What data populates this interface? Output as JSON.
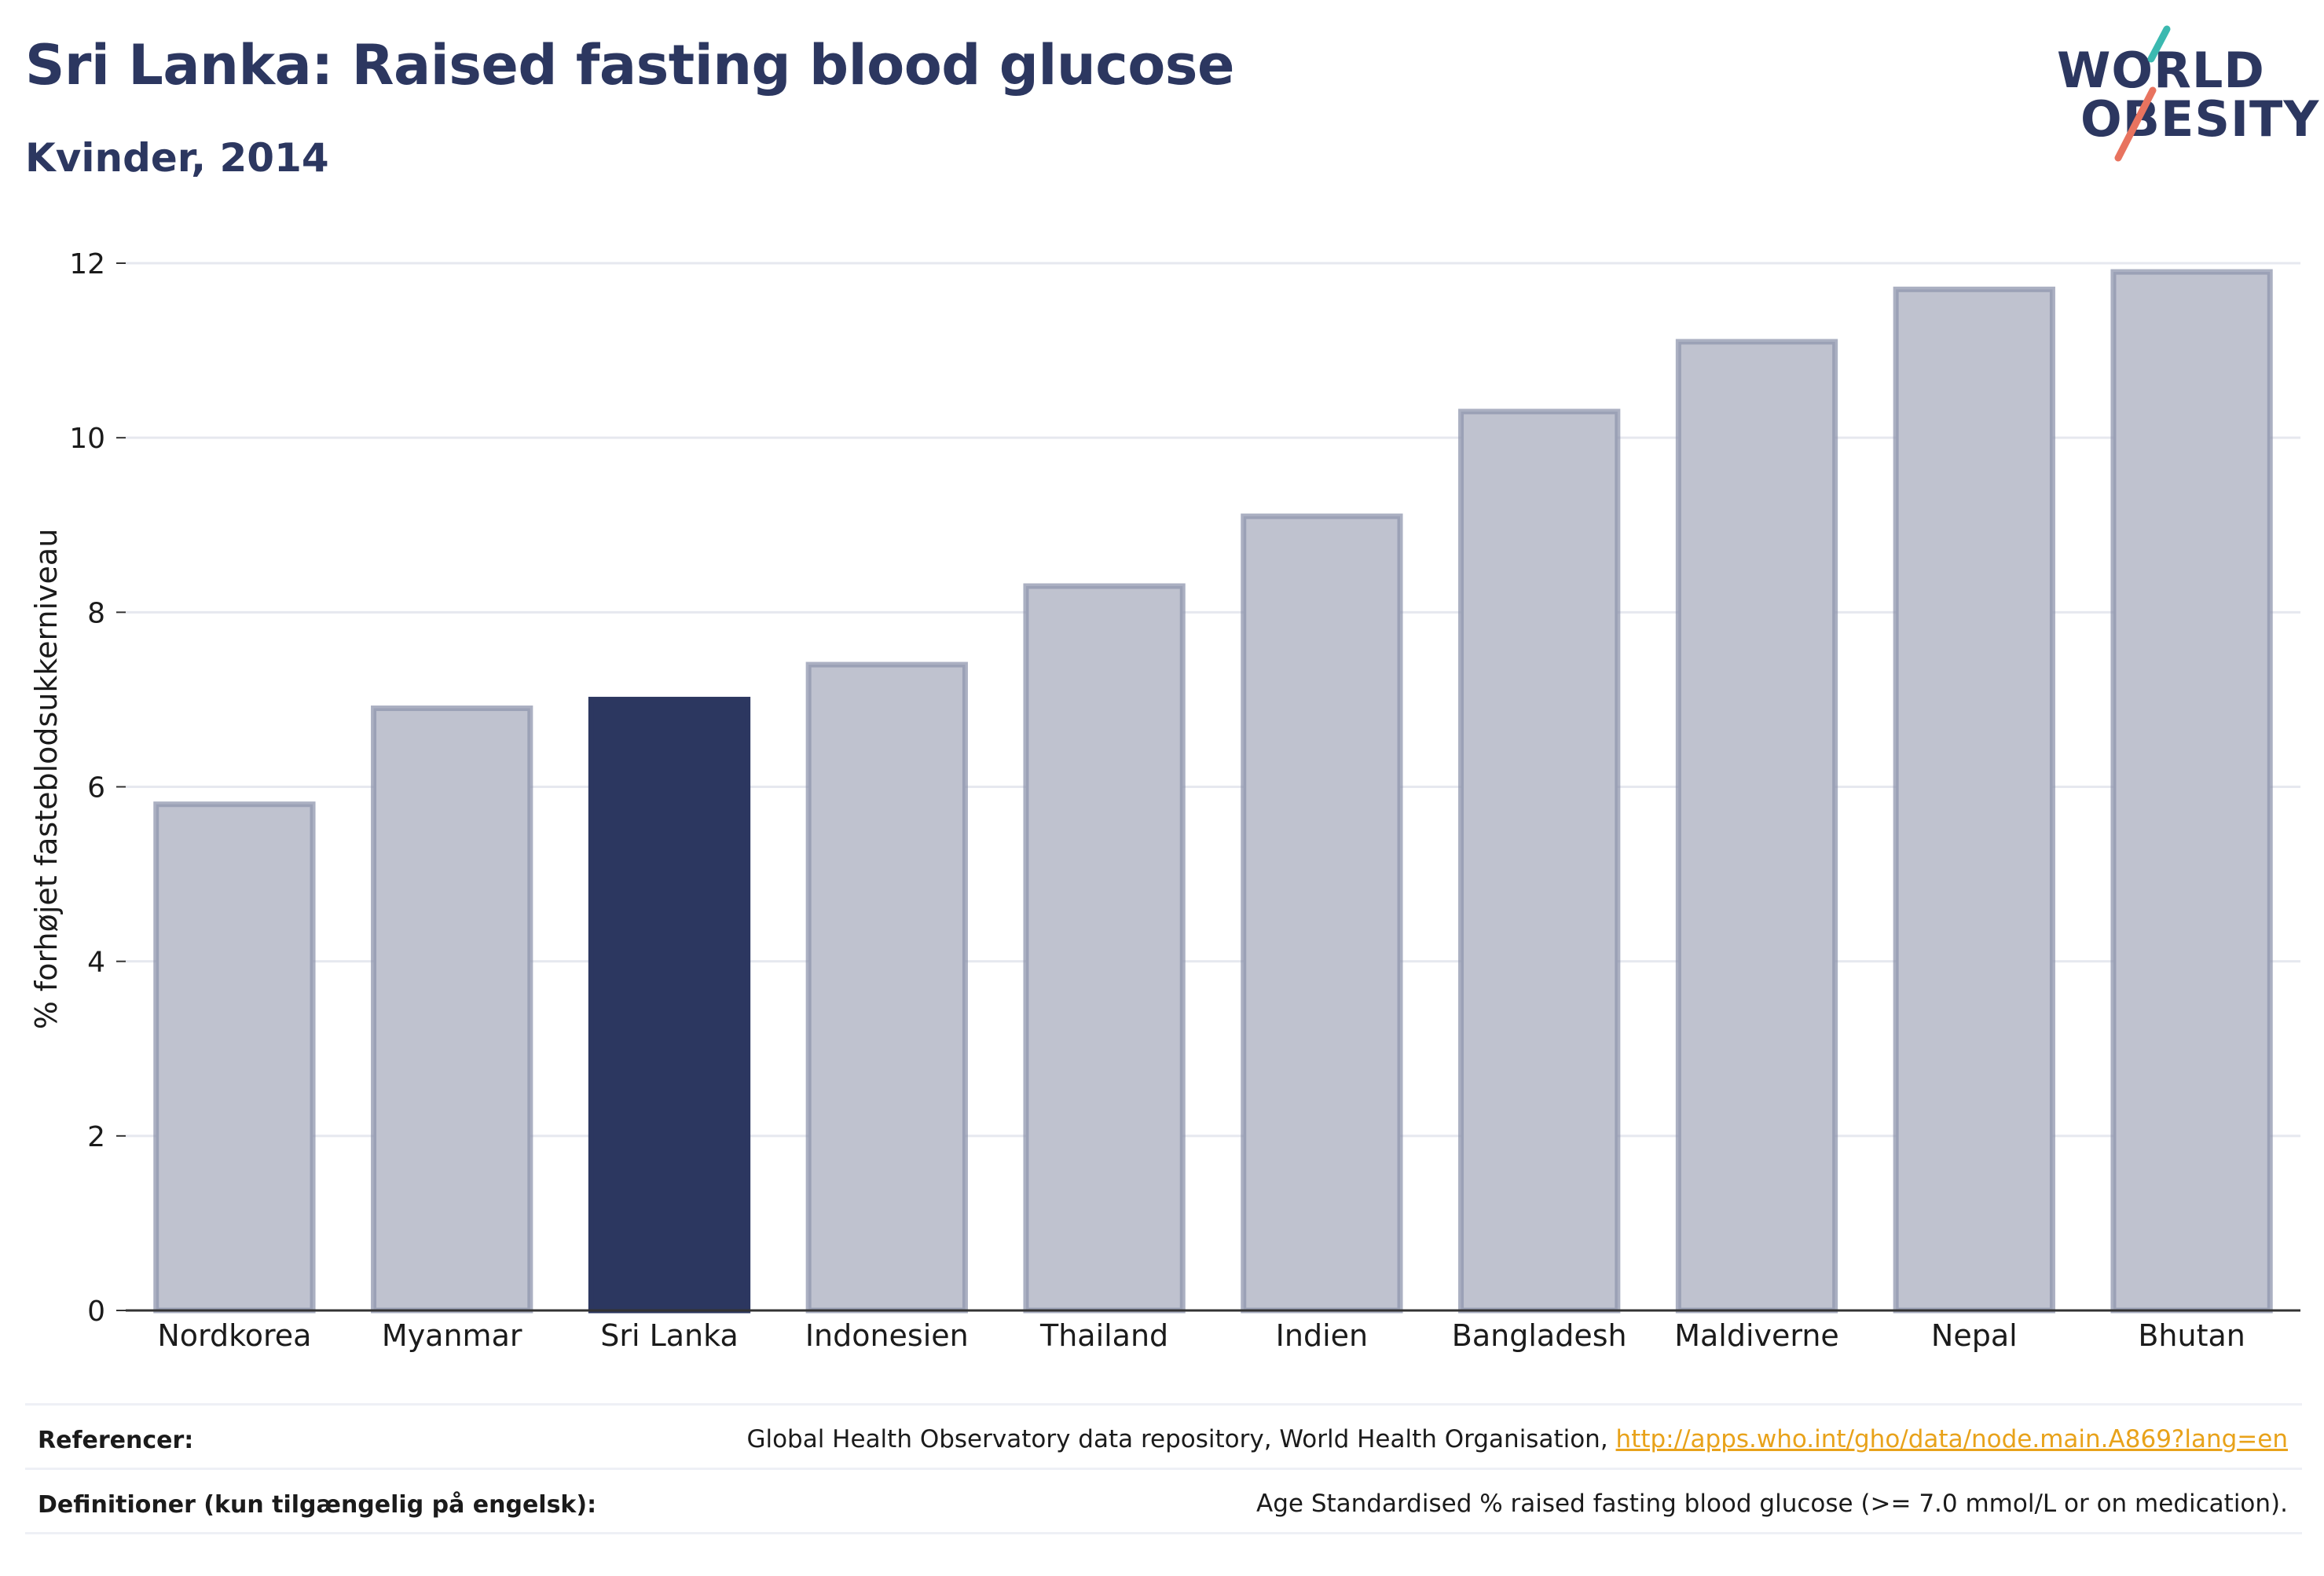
{
  "header": {
    "title": "Sri Lanka: Raised fasting blood glucose",
    "subtitle": "Kvinder, 2014"
  },
  "logo": {
    "line1": "WORLD",
    "line2": "OBESITY",
    "icon": "world-obesity-slash-logo"
  },
  "colors": {
    "highlight": "#2c3760",
    "bar_fill": "#bfc2cf",
    "bar_stroke": "#8f95ad",
    "grid": "#e6e8ef",
    "axis": "#333333",
    "logo_teal": "#3bb9b0",
    "logo_coral": "#e8735f",
    "link": "#e8a21a"
  },
  "chart_data": {
    "type": "bar",
    "categories": [
      "Nordkorea",
      "Myanmar",
      "Sri Lanka",
      "Indonesien",
      "Thailand",
      "Indien",
      "Bangladesh",
      "Maldiverne",
      "Nepal",
      "Bhutan"
    ],
    "values": [
      5.8,
      6.9,
      7.0,
      7.4,
      8.3,
      9.1,
      10.3,
      11.1,
      11.7,
      11.9
    ],
    "highlight": "Sri Lanka",
    "ylabel": "% forhøjet fasteblodsukkerniveau",
    "ylim": [
      0,
      12
    ],
    "yticks": [
      0,
      2,
      4,
      6,
      8,
      10,
      12
    ],
    "grid": true
  },
  "footer": {
    "references_label": "Referencer:",
    "references_text": "Global Health Observatory data repository, World Health Organisation, ",
    "references_link": "http://apps.who.int/gho/data/node.main.A869?lang=en",
    "definitions_label": "Definitioner (kun tilgængelig på engelsk):",
    "definitions_text": "Age Standardised % raised fasting blood glucose (>= 7.0 mmol/L or on medication)."
  }
}
